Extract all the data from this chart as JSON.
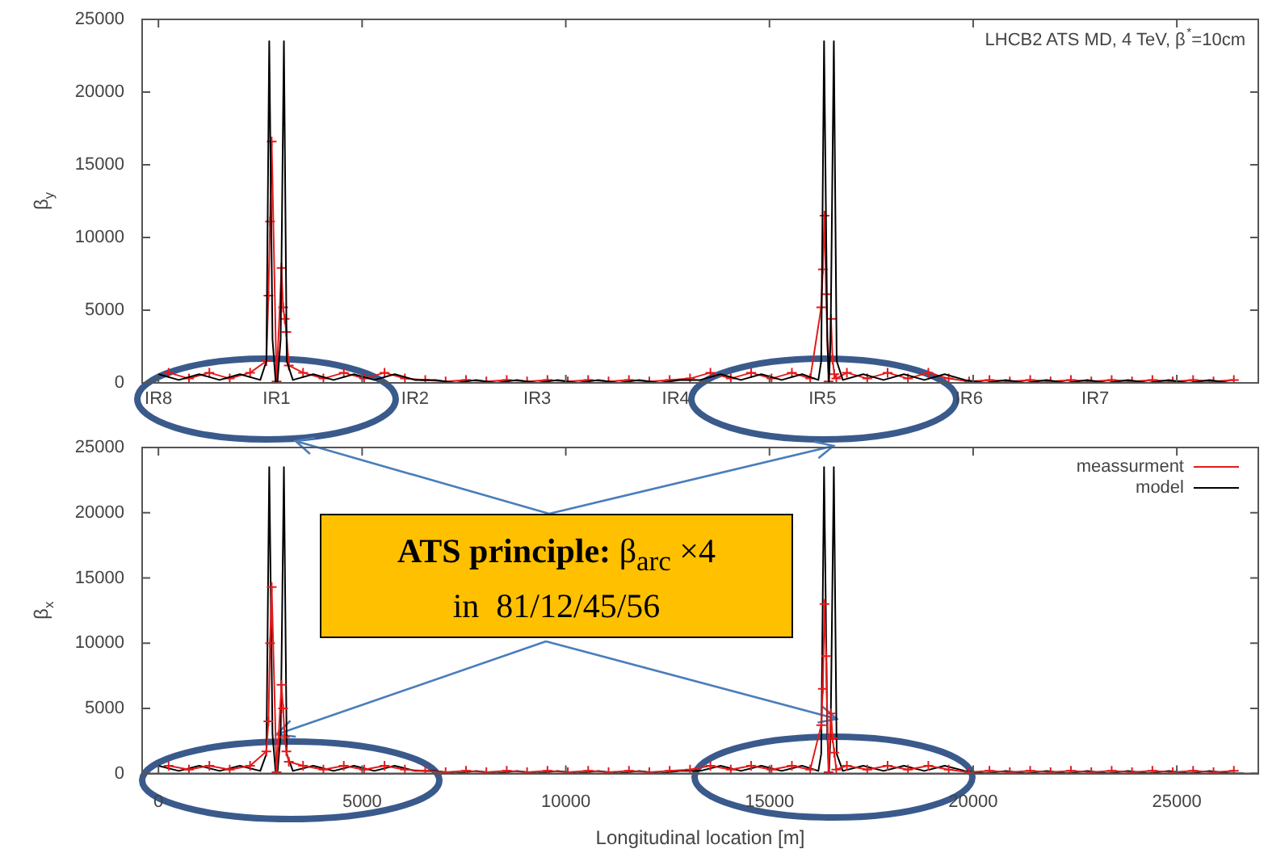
{
  "chart_data": [
    {
      "type": "line",
      "title": "LHCB2 ATS MD, 4 TeV, β$^{*}$=10cm",
      "ylabel": "β$_{y}$",
      "tick_labels": "y",
      "annotations": [
        {
          "text": "IR8",
          "x": 0,
          "y": 0
        },
        {
          "text": "IR1",
          "x": 2900,
          "y": 0
        },
        {
          "text": "IR2",
          "x": 6300,
          "y": 0
        },
        {
          "text": "IR3",
          "x": 9300,
          "y": 0
        },
        {
          "text": "IR4",
          "x": 12700,
          "y": 0
        },
        {
          "text": "IR5",
          "x": 16300,
          "y": 0
        },
        {
          "text": "IR6",
          "x": 19900,
          "y": 0
        },
        {
          "text": "IR7",
          "x": 23000,
          "y": 0
        }
      ],
      "xlim": [
        -400,
        27000
      ],
      "ylim": [
        0,
        25000
      ],
      "xticks": [
        {
          "value": 0,
          "label": null
        },
        {
          "value": 5000,
          "label": null
        },
        {
          "value": 10000,
          "label": null
        },
        {
          "value": 15000,
          "label": null
        },
        {
          "value": 20000,
          "label": null
        },
        {
          "value": 25000,
          "label": null
        }
      ],
      "yticks": [
        0,
        5000,
        10000,
        15000,
        20000,
        25000
      ],
      "series": [
        {
          "color": "#000000",
          "marker": "none",
          "x": [
            0,
            500,
            1000,
            1500,
            2000,
            2500,
            2650,
            2720,
            2800,
            2880,
            2920,
            3000,
            3080,
            3150,
            3300,
            3800,
            4300,
            4800,
            5300,
            5800,
            6300,
            6800,
            7300,
            7800,
            8300,
            8800,
            9300,
            9800,
            10300,
            10800,
            11300,
            11800,
            12300,
            12800,
            13300,
            13800,
            14300,
            14800,
            15300,
            15800,
            16200,
            16270,
            16340,
            16420,
            16460,
            16500,
            16580,
            16650,
            16800,
            17300,
            17800,
            18300,
            18800,
            19300,
            19800,
            20300,
            20800,
            21300,
            21800,
            22300,
            22800,
            23300,
            23800,
            24300,
            24800,
            25300,
            25800,
            26300,
            26650
          ],
          "values": [
            600,
            200,
            600,
            200,
            600,
            200,
            1500,
            23500,
            3000,
            0,
            0,
            3000,
            23500,
            1500,
            200,
            600,
            200,
            600,
            200,
            600,
            200,
            200,
            0,
            200,
            0,
            200,
            0,
            200,
            0,
            200,
            0,
            200,
            0,
            200,
            200,
            600,
            200,
            600,
            200,
            600,
            200,
            1500,
            23500,
            3000,
            0,
            3000,
            23500,
            1500,
            200,
            600,
            200,
            600,
            200,
            600,
            200,
            0,
            200,
            0,
            200,
            0,
            200,
            0,
            200,
            0,
            200,
            0,
            200,
            0,
            0
          ]
        },
        {
          "color": "#e41a1c",
          "marker": "cross",
          "x": [
            250,
            750,
            1250,
            1750,
            2250,
            2650,
            2700,
            2740,
            2780,
            2900,
            3020,
            3060,
            3100,
            3140,
            3200,
            3550,
            4050,
            4550,
            5050,
            5550,
            6050,
            6550,
            7050,
            7550,
            8050,
            8550,
            9050,
            9550,
            10050,
            10550,
            11050,
            11550,
            12050,
            12550,
            13050,
            13550,
            14050,
            14550,
            15050,
            15550,
            16000,
            16270,
            16310,
            16350,
            16390,
            16450,
            16510,
            16550,
            16590,
            16640,
            16900,
            17400,
            17900,
            18400,
            18900,
            19400,
            19900,
            20400,
            20900,
            21400,
            21900,
            22400,
            22900,
            23400,
            23900,
            24400,
            24900,
            25400,
            25900,
            26400
          ],
          "values": [
            700,
            300,
            700,
            300,
            700,
            1500,
            6000,
            11100,
            16600,
            100,
            7900,
            5200,
            4400,
            3500,
            1200,
            700,
            300,
            700,
            300,
            700,
            300,
            200,
            100,
            200,
            100,
            200,
            100,
            200,
            100,
            200,
            100,
            200,
            100,
            200,
            300,
            700,
            300,
            700,
            300,
            700,
            300,
            5200,
            7800,
            11500,
            6100,
            100,
            4400,
            1600,
            600,
            300,
            700,
            300,
            700,
            300,
            700,
            300,
            100,
            200,
            100,
            200,
            100,
            200,
            100,
            200,
            100,
            200,
            100,
            200,
            100,
            200
          ]
        }
      ]
    },
    {
      "type": "line",
      "xlabel": "Longitudinal location [m]",
      "ylabel": "β$_{x}$",
      "legend": "top right",
      "annotations": [
        {
          "text": "ATS principle: β$_{arc}$ ×4 in  81/12/45/56",
          "x": 2900,
          "y": 3000
        }
      ],
      "xlim": [
        -400,
        27000
      ],
      "ylim": [
        0,
        25000
      ],
      "xticks": [
        0,
        5000,
        10000,
        15000,
        20000,
        25000
      ],
      "yticks": [
        0,
        5000,
        10000,
        15000,
        20000,
        25000
      ],
      "series": [
        {
          "name": "meassurment",
          "color": "#e41a1c",
          "marker": "cross",
          "x": [
            250,
            750,
            1250,
            1750,
            2250,
            2650,
            2700,
            2740,
            2780,
            2900,
            3020,
            3060,
            3100,
            3140,
            3200,
            3550,
            4050,
            4550,
            5050,
            5550,
            6050,
            6550,
            7050,
            7550,
            8050,
            8550,
            9050,
            9550,
            10050,
            10550,
            11050,
            11550,
            12050,
            12550,
            13050,
            13550,
            14050,
            14550,
            15050,
            15550,
            16000,
            16270,
            16310,
            16350,
            16390,
            16450,
            16510,
            16550,
            16590,
            16640,
            16900,
            17400,
            17900,
            18400,
            18900,
            19400,
            19900,
            20400,
            20900,
            21400,
            21900,
            22400,
            22900,
            23400,
            23900,
            24400,
            24900,
            25400,
            25900,
            26400
          ],
          "values": [
            600,
            300,
            600,
            300,
            600,
            1700,
            4000,
            10000,
            14300,
            100,
            6800,
            5000,
            2800,
            1700,
            900,
            600,
            300,
            600,
            300,
            600,
            300,
            200,
            100,
            200,
            100,
            200,
            100,
            200,
            100,
            200,
            100,
            200,
            100,
            200,
            300,
            600,
            300,
            600,
            300,
            600,
            300,
            3700,
            6500,
            13000,
            9000,
            100,
            4600,
            2700,
            1600,
            300,
            600,
            300,
            600,
            300,
            600,
            300,
            100,
            200,
            100,
            200,
            100,
            200,
            100,
            200,
            100,
            200,
            100,
            200,
            100,
            200
          ]
        },
        {
          "name": "model",
          "color": "#000000",
          "marker": "none",
          "x": [
            0,
            500,
            1000,
            1500,
            2000,
            2500,
            2650,
            2720,
            2800,
            2880,
            2920,
            3000,
            3080,
            3150,
            3300,
            3800,
            4300,
            4800,
            5300,
            5800,
            6300,
            6800,
            7300,
            7800,
            8300,
            8800,
            9300,
            9800,
            10300,
            10800,
            11300,
            11800,
            12300,
            12800,
            13300,
            13800,
            14300,
            14800,
            15300,
            15800,
            16200,
            16270,
            16340,
            16420,
            16460,
            16500,
            16580,
            16650,
            16800,
            17300,
            17800,
            18300,
            18800,
            19300,
            19800,
            20300,
            20800,
            21300,
            21800,
            22300,
            22800,
            23300,
            23800,
            24300,
            24800,
            25300,
            25800,
            26300,
            26650
          ],
          "values": [
            600,
            200,
            600,
            200,
            600,
            200,
            1500,
            23500,
            3000,
            0,
            0,
            3000,
            23500,
            1500,
            200,
            600,
            200,
            600,
            200,
            600,
            200,
            200,
            0,
            200,
            0,
            200,
            0,
            200,
            0,
            200,
            0,
            200,
            0,
            200,
            200,
            600,
            200,
            600,
            200,
            600,
            200,
            1500,
            23500,
            3000,
            0,
            3000,
            23500,
            1500,
            200,
            600,
            200,
            600,
            200,
            600,
            200,
            0,
            200,
            0,
            200,
            0,
            200,
            0,
            200,
            0,
            200,
            0,
            200,
            0,
            0
          ]
        }
      ]
    }
  ]
}
